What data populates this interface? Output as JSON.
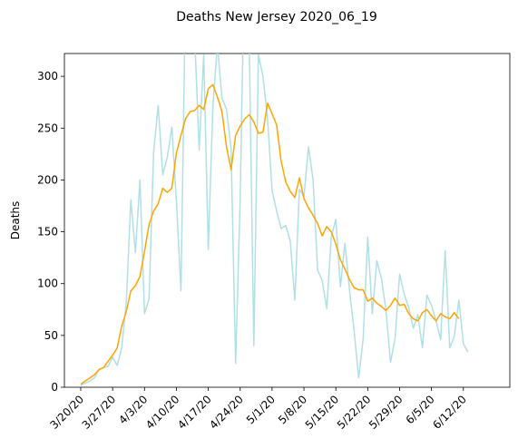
{
  "chart_data": {
    "type": "line",
    "title": "Deaths New Jersey 2020_06_19",
    "ylabel": "Deaths",
    "xlabel": "",
    "ylim": [
      0,
      322
    ],
    "yticks": [
      0,
      50,
      100,
      150,
      200,
      250,
      300
    ],
    "x_ticks": [
      {
        "label": "3/20/20",
        "day": 0
      },
      {
        "label": "3/27/20",
        "day": 7
      },
      {
        "label": "4/3/20",
        "day": 14
      },
      {
        "label": "4/10/20",
        "day": 21
      },
      {
        "label": "4/17/20",
        "day": 28
      },
      {
        "label": "4/24/20",
        "day": 35
      },
      {
        "label": "5/1/20",
        "day": 42
      },
      {
        "label": "5/8/20",
        "day": 49
      },
      {
        "label": "5/15/20",
        "day": 56
      },
      {
        "label": "5/22/20",
        "day": 63
      },
      {
        "label": "5/29/20",
        "day": 70
      },
      {
        "label": "6/5/20",
        "day": 77
      },
      {
        "label": "6/12/20",
        "day": 84
      }
    ],
    "grid": false,
    "series": [
      {
        "color": "#b0e0e6",
        "values": [
          2,
          4,
          6,
          9,
          17,
          19,
          20,
          29,
          21,
          38,
          82,
          181,
          130,
          200,
          71,
          85,
          227,
          272,
          205,
          222,
          251,
          180,
          93,
          381,
          330,
          340,
          229,
          321,
          133,
          270,
          331,
          279,
          268,
          230,
          23,
          181,
          426,
          330,
          40,
          321,
          300,
          260,
          190,
          170,
          153,
          156,
          141,
          84,
          191,
          184,
          232,
          200,
          113,
          103,
          76,
          145,
          162,
          97,
          139,
          94,
          55,
          9,
          47,
          145,
          71,
          122,
          105,
          75,
          24,
          47,
          109,
          90,
          77,
          57,
          70,
          38,
          89,
          79,
          64,
          46,
          132,
          38,
          49,
          84,
          42,
          34
        ],
        "x_start_day": 0
      },
      {
        "color": "#ffa500",
        "values": [
          3,
          6,
          9,
          12,
          17,
          19,
          25,
          31,
          38,
          59,
          73,
          93,
          98,
          107,
          131,
          157,
          170,
          177,
          192,
          188,
          192,
          226,
          243,
          259,
          266,
          267,
          272,
          268,
          288,
          292,
          280,
          266,
          232,
          210,
          243,
          252,
          259,
          263,
          256,
          245,
          246,
          274,
          264,
          253,
          218,
          198,
          189,
          183,
          202,
          182,
          173,
          166,
          158,
          146,
          155,
          150,
          138,
          123,
          114,
          104,
          96,
          94,
          94,
          83,
          86,
          81,
          78,
          74,
          79,
          86,
          79,
          80,
          71,
          66,
          64,
          72,
          75,
          69,
          64,
          71,
          68,
          66,
          72,
          66
        ]
      }
    ]
  }
}
